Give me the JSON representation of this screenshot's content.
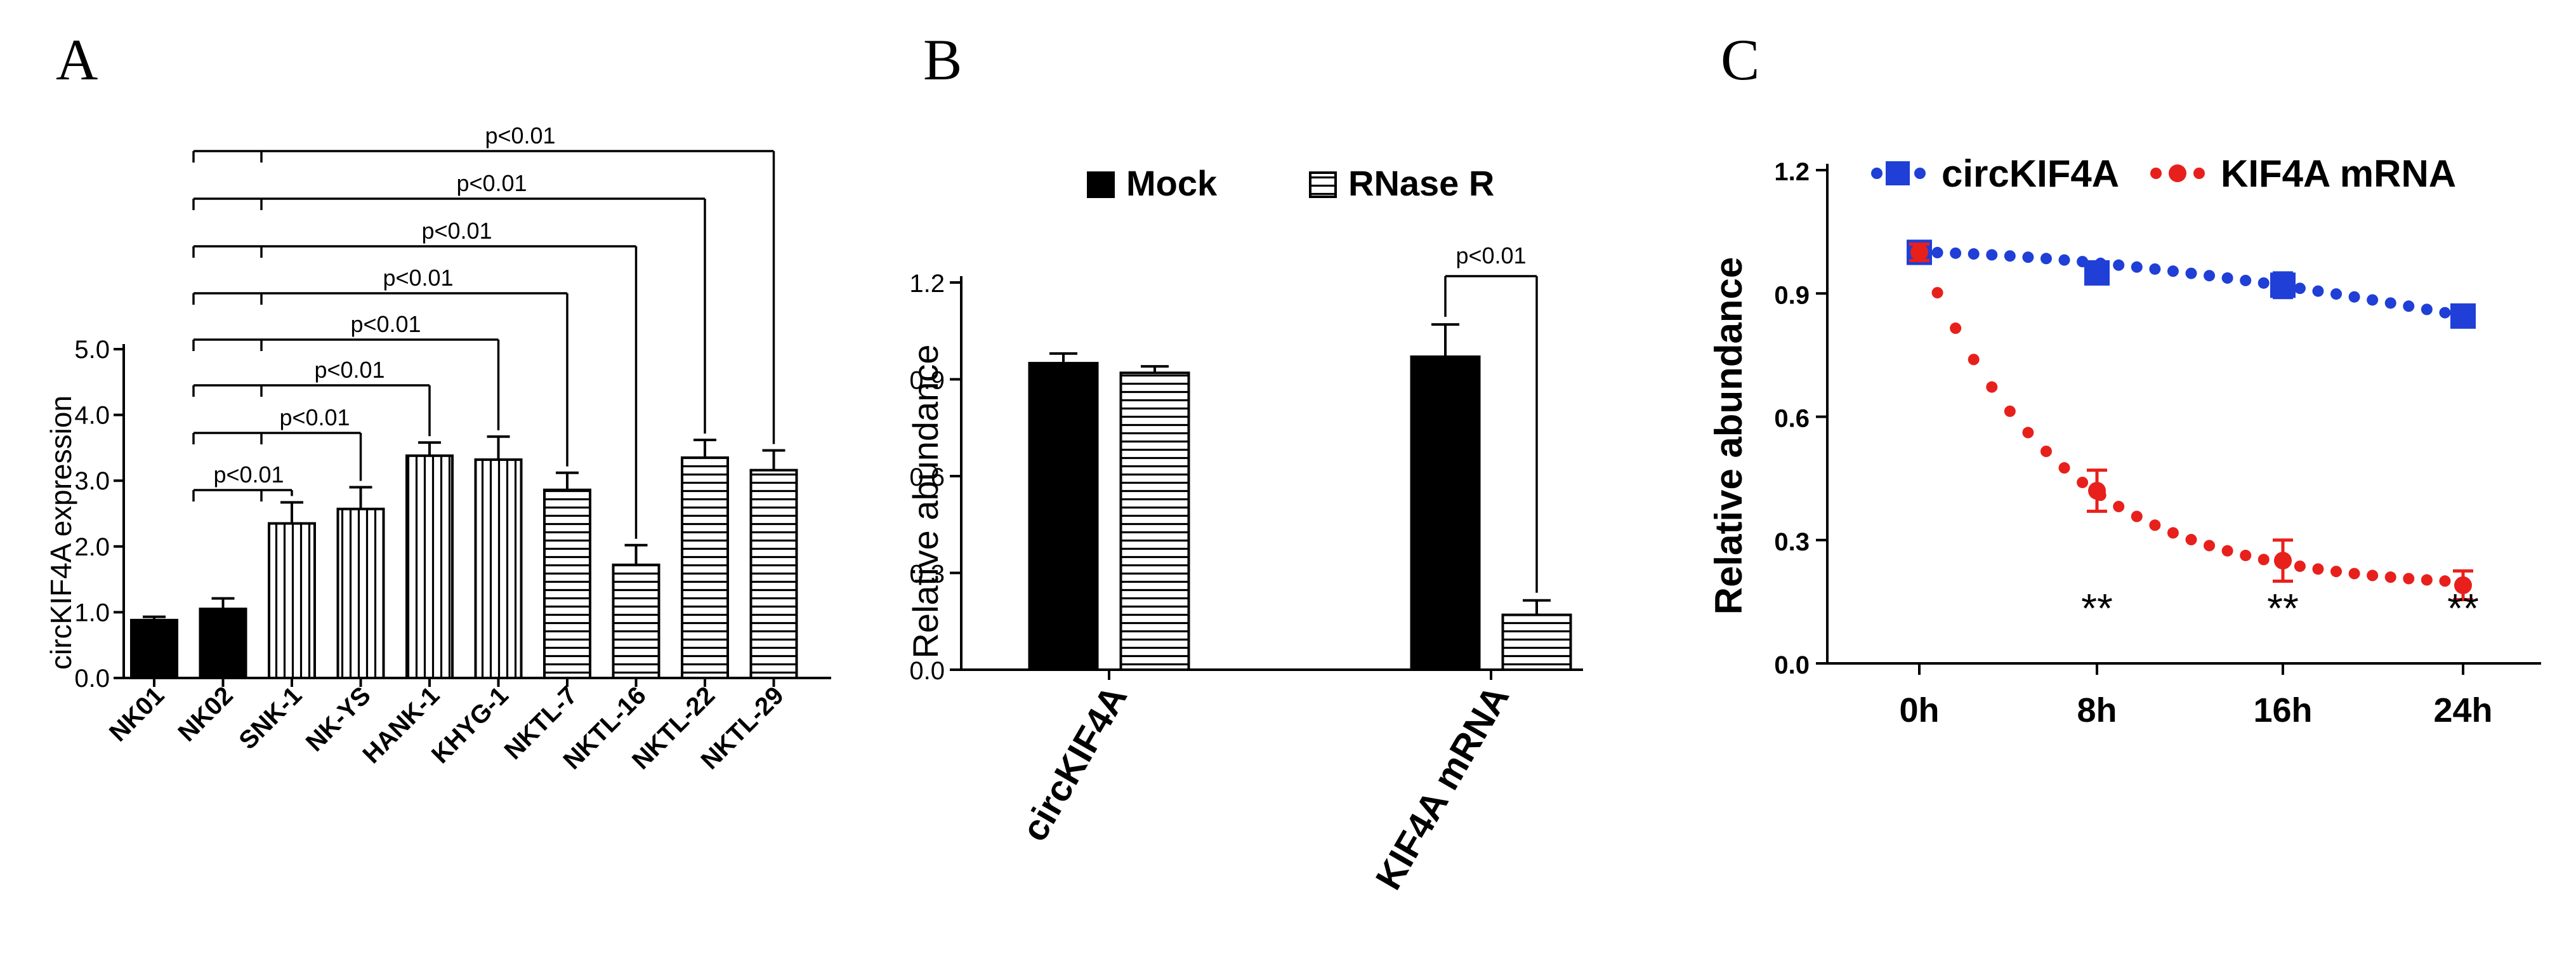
{
  "panels": {
    "a": "A",
    "b": "B",
    "c": "C"
  },
  "chart_data": [
    {
      "id": "A",
      "type": "bar",
      "ylabel": "circKIF4A expression",
      "ylim": [
        0,
        5
      ],
      "yticks": [
        "0.0",
        "1.0",
        "2.0",
        "3.0",
        "4.0",
        "5.0"
      ],
      "categories": [
        "NK01",
        "NK02",
        "SNK-1",
        "NK-YS",
        "HANK-1",
        "KHYG-1",
        "NKTL-7",
        "NKTL-16",
        "NKTL-22",
        "NKTL-29"
      ],
      "values": [
        0.88,
        1.05,
        2.35,
        2.57,
        3.38,
        3.32,
        2.86,
        1.72,
        3.35,
        3.16
      ],
      "errors": [
        0.05,
        0.16,
        0.32,
        0.33,
        0.2,
        0.35,
        0.26,
        0.3,
        0.27,
        0.3
      ],
      "fills": [
        "solid",
        "solid",
        "vertical",
        "vertical",
        "vertical",
        "vertical",
        "horizontal",
        "horizontal",
        "horizontal",
        "horizontal"
      ],
      "comparisons": [
        {
          "target": "SNK-1",
          "label": "p<0.01"
        },
        {
          "target": "NK-YS",
          "label": "p<0.01"
        },
        {
          "target": "HANK-1",
          "label": "p<0.01"
        },
        {
          "target": "KHYG-1",
          "label": "p<0.01"
        },
        {
          "target": "NKTL-7",
          "label": "p<0.01"
        },
        {
          "target": "NKTL-16",
          "label": "p<0.01"
        },
        {
          "target": "NKTL-22",
          "label": "p<0.01"
        },
        {
          "target": "NKTL-29",
          "label": "p<0.01"
        }
      ]
    },
    {
      "id": "B",
      "type": "bar",
      "ylabel": "Relative abundance",
      "ylim": [
        0,
        1.2
      ],
      "yticks": [
        "0.0",
        "0.3",
        "0.6",
        "0.9",
        "1.2"
      ],
      "categories": [
        "circKIF4A",
        "KIF4A mRNA"
      ],
      "series": [
        {
          "name": "Mock",
          "fill": "solid",
          "values": [
            0.95,
            0.97
          ],
          "errors": [
            0.03,
            0.1
          ]
        },
        {
          "name": "RNase R",
          "fill": "horizontal",
          "values": [
            0.92,
            0.17
          ],
          "errors": [
            0.02,
            0.045
          ]
        }
      ],
      "legend": "top",
      "comparison": {
        "category": "KIF4A mRNA",
        "label": "p<0.01"
      }
    },
    {
      "id": "C",
      "type": "line",
      "ylabel": "Relative abundance",
      "ylim": [
        0,
        1.2
      ],
      "yticks": [
        "0.0",
        "0.3",
        "0.6",
        "0.9",
        "1.2"
      ],
      "x": [
        "0h",
        "8h",
        "16h",
        "24h"
      ],
      "series": [
        {
          "name": "circKIF4A",
          "color": "#1f3fd6",
          "marker": "square",
          "values": [
            1.0,
            0.95,
            0.92,
            0.845
          ],
          "errors": [
            0.02,
            0.015,
            0.03,
            0.02
          ]
        },
        {
          "name": "KIF4A mRNA",
          "color": "#e8201c",
          "marker": "circle",
          "values": [
            1.0,
            0.42,
            0.25,
            0.19
          ],
          "errors": [
            0.02,
            0.05,
            0.05,
            0.035
          ]
        }
      ],
      "legend": "top",
      "annotations": [
        "**",
        "**",
        "**"
      ]
    }
  ]
}
